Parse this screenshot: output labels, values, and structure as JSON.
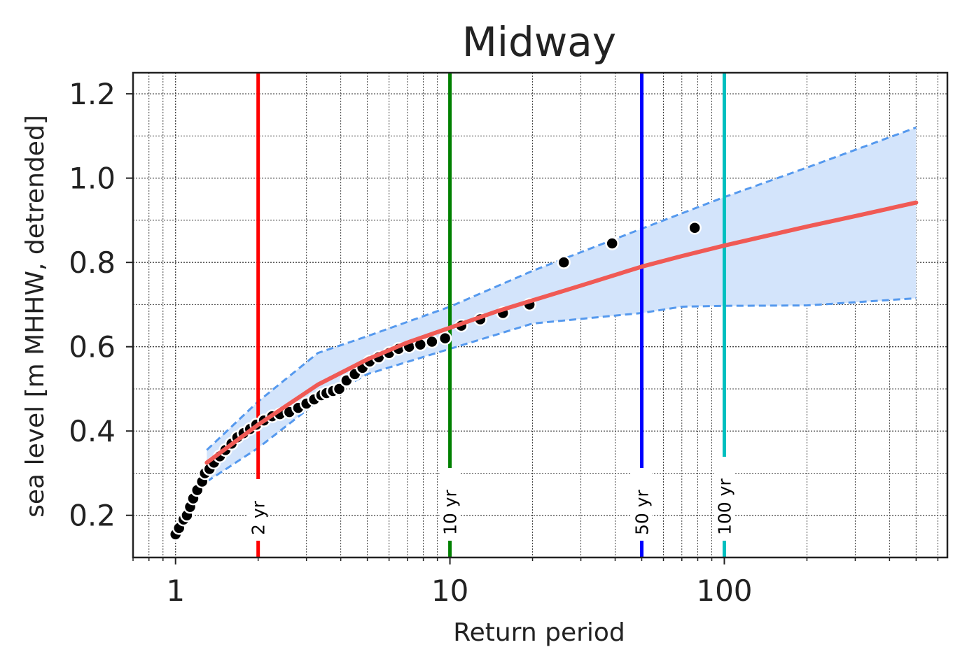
{
  "chart_data": {
    "type": "scatter",
    "title": "Midway",
    "xlabel": "Return period",
    "ylabel": "sea level [m MHHW, detrended]",
    "x_scale": "log",
    "xlim": [
      0.7,
      650
    ],
    "ylim": [
      0.1,
      1.25
    ],
    "x_ticks": [
      {
        "value": 1,
        "label": "1"
      },
      {
        "value": 10,
        "label": "10"
      },
      {
        "value": 100,
        "label": "100"
      }
    ],
    "y_ticks": [
      {
        "value": 0.2,
        "label": "0.2"
      },
      {
        "value": 0.4,
        "label": "0.4"
      },
      {
        "value": 0.6,
        "label": "0.6"
      },
      {
        "value": 0.8,
        "label": "0.8"
      },
      {
        "value": 1.0,
        "label": "1.0"
      },
      {
        "value": 1.2,
        "label": "1.2"
      }
    ],
    "grid": true,
    "return_levels": [
      {
        "x": 2,
        "label": "2 yr",
        "color": "#ff0000"
      },
      {
        "x": 10,
        "label": "10 yr",
        "color": "#008000"
      },
      {
        "x": 50,
        "label": "50 yr",
        "color": "#0000ff"
      },
      {
        "x": 100,
        "label": "100 yr",
        "color": "#00bfbf"
      }
    ],
    "fit": {
      "color": "#f05a55",
      "x": [
        1.3,
        2,
        3.3,
        5,
        7,
        10,
        15,
        20,
        30,
        50,
        70,
        100,
        200,
        300,
        500
      ],
      "y": [
        0.325,
        0.415,
        0.51,
        0.57,
        0.61,
        0.645,
        0.685,
        0.71,
        0.745,
        0.79,
        0.815,
        0.84,
        0.885,
        0.91,
        0.942
      ]
    },
    "ci_upper": {
      "x": [
        1.3,
        2,
        3.3,
        5,
        10,
        20,
        50,
        100,
        200,
        500
      ],
      "y": [
        0.355,
        0.47,
        0.585,
        0.625,
        0.695,
        0.78,
        0.88,
        0.955,
        1.025,
        1.12
      ]
    },
    "ci_lower": {
      "x": [
        1.3,
        2,
        3.3,
        5,
        10,
        20,
        50,
        70,
        100,
        200,
        500
      ],
      "y": [
        0.28,
        0.36,
        0.47,
        0.535,
        0.595,
        0.655,
        0.68,
        0.695,
        0.697,
        0.698,
        0.715
      ]
    },
    "ci_color": "#5599ee",
    "ci_fill": "#d3e4fb",
    "observations": {
      "color": "#000000",
      "points": [
        [
          1.0,
          0.155
        ],
        [
          1.03,
          0.17
        ],
        [
          1.07,
          0.19
        ],
        [
          1.1,
          0.2
        ],
        [
          1.13,
          0.22
        ],
        [
          1.16,
          0.24
        ],
        [
          1.2,
          0.26
        ],
        [
          1.25,
          0.28
        ],
        [
          1.28,
          0.3
        ],
        [
          1.33,
          0.31
        ],
        [
          1.38,
          0.325
        ],
        [
          1.45,
          0.34
        ],
        [
          1.52,
          0.355
        ],
        [
          1.6,
          0.37
        ],
        [
          1.68,
          0.385
        ],
        [
          1.77,
          0.395
        ],
        [
          1.87,
          0.405
        ],
        [
          1.97,
          0.415
        ],
        [
          2.1,
          0.425
        ],
        [
          2.25,
          0.435
        ],
        [
          2.4,
          0.44
        ],
        [
          2.6,
          0.445
        ],
        [
          2.8,
          0.455
        ],
        [
          3.0,
          0.465
        ],
        [
          3.2,
          0.475
        ],
        [
          3.4,
          0.485
        ],
        [
          3.55,
          0.49
        ],
        [
          3.75,
          0.495
        ],
        [
          3.95,
          0.5
        ],
        [
          4.2,
          0.52
        ],
        [
          4.5,
          0.535
        ],
        [
          4.8,
          0.55
        ],
        [
          5.1,
          0.565
        ],
        [
          5.5,
          0.575
        ],
        [
          6.0,
          0.585
        ],
        [
          6.5,
          0.595
        ],
        [
          7.1,
          0.6
        ],
        [
          7.8,
          0.605
        ],
        [
          8.6,
          0.612
        ],
        [
          9.6,
          0.62
        ],
        [
          11.0,
          0.65
        ],
        [
          12.9,
          0.665
        ],
        [
          15.6,
          0.68
        ],
        [
          19.5,
          0.7
        ],
        [
          26.0,
          0.8
        ],
        [
          39.0,
          0.845
        ],
        [
          78.0,
          0.882
        ]
      ]
    }
  }
}
